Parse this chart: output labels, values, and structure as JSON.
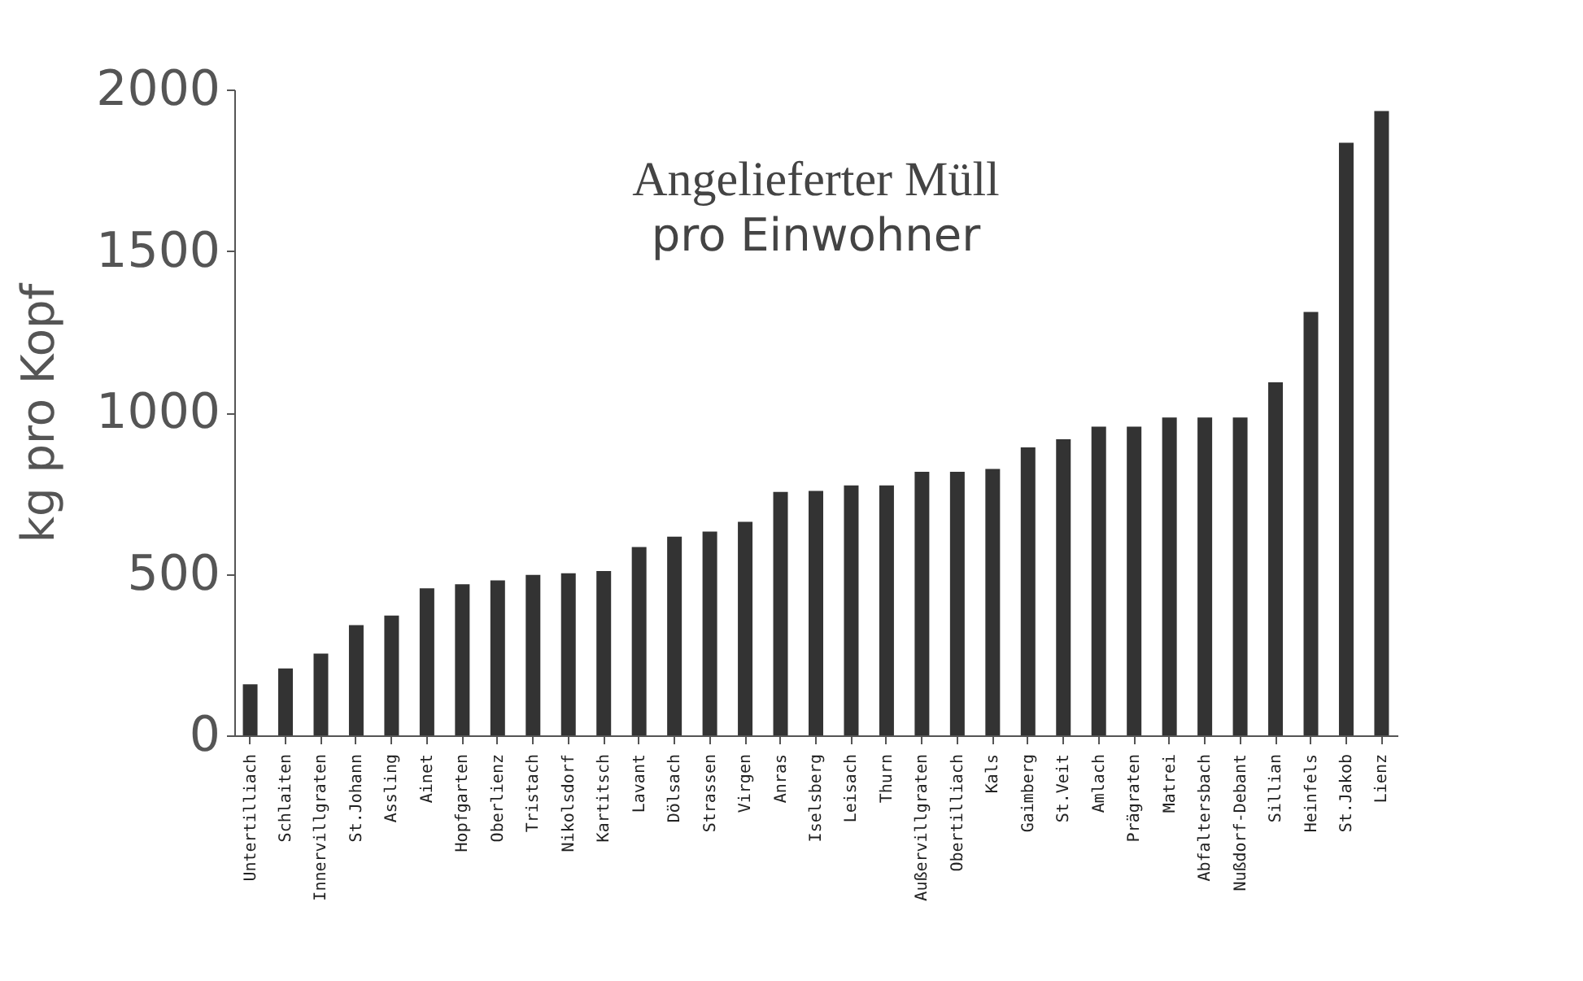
{
  "chart_data": {
    "type": "bar",
    "title": "Angelieferter Müll",
    "subtitle": "pro Einwohner",
    "ylabel": "kg pro Kopf",
    "categories": [
      "Untertilliach",
      "Schlaiten",
      "Innervillgraten",
      "St.Johann",
      "Assling",
      "Ainet",
      "Hopfgarten",
      "Oberlienz",
      "Tristach",
      "Nikolsdorf",
      "Kartitsch",
      "Lavant",
      "Dölsach",
      "Strassen",
      "Virgen",
      "Anras",
      "Iselsberg",
      "Leisach",
      "Thurn",
      "Außervillgraten",
      "Obertilliach",
      "Kals",
      "Gaimberg",
      "St.Veit",
      "Amlach",
      "Prägraten",
      "Matrei",
      "Abfaltersbach",
      "Nußdorf-Debant",
      "Sillian",
      "Heinfels",
      "St.Jakob",
      "Lienz"
    ],
    "values": [
      158,
      207,
      253,
      341,
      371,
      455,
      468,
      480,
      497,
      502,
      509,
      583,
      615,
      631,
      661,
      754,
      757,
      774,
      774,
      816,
      816,
      825,
      892,
      917,
      956,
      956,
      984,
      984,
      984,
      1093,
      1311,
      1835,
      1933
    ],
    "color": "#333333",
    "ylim": [
      0,
      2000
    ],
    "yticks": [
      0,
      500,
      1000,
      1500,
      2000
    ],
    "grid": false
  }
}
